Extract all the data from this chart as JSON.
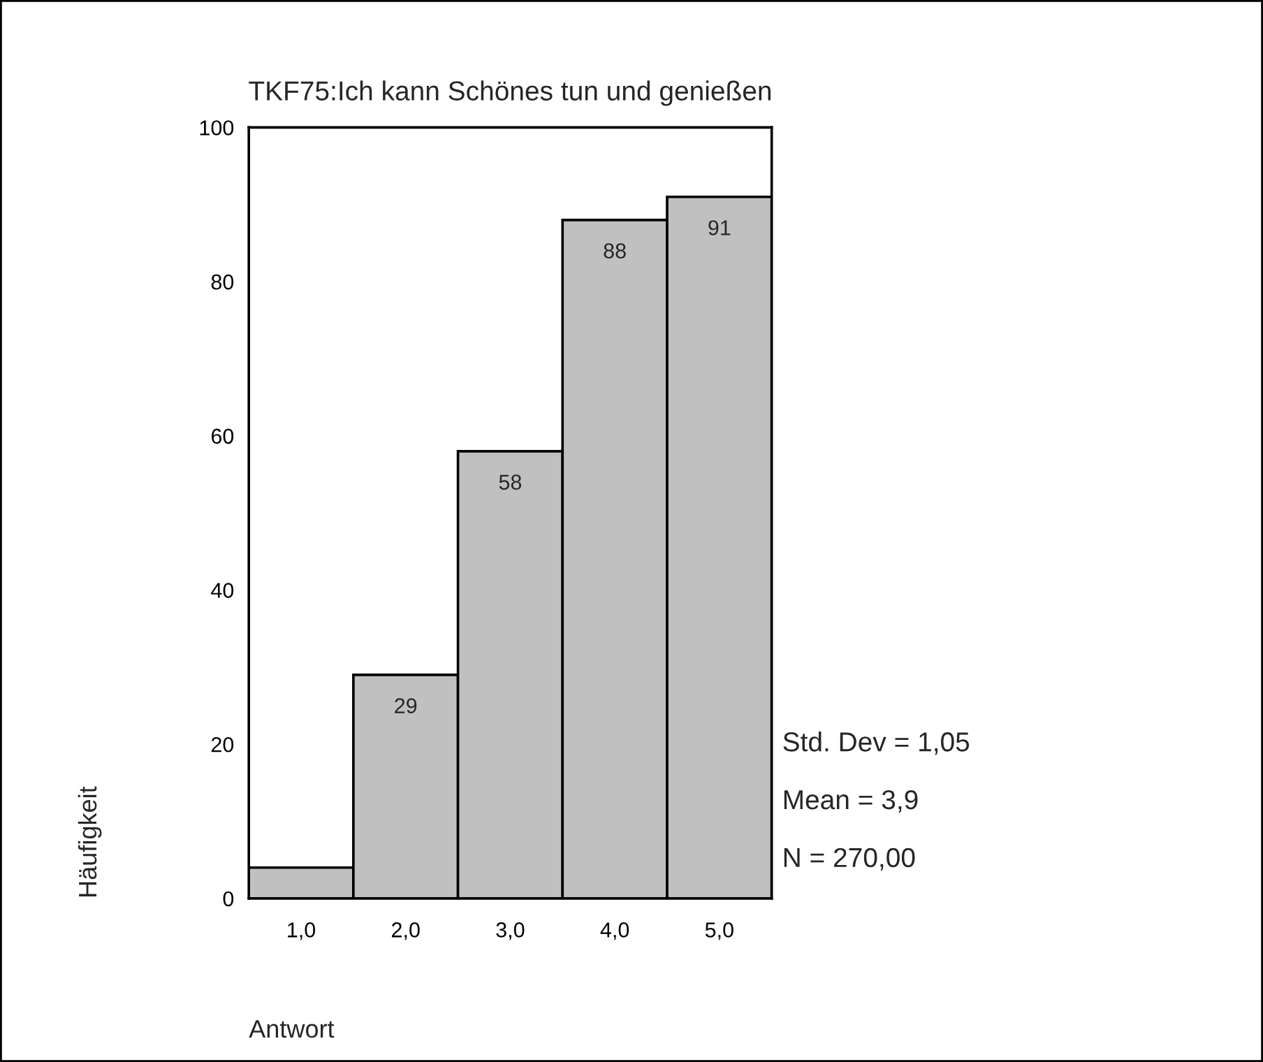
{
  "chart_data": {
    "type": "histogram",
    "title": "TKF75:Ich kann Schönes tun und genießen",
    "xlabel": "Antwort",
    "ylabel": "Häufigkeit",
    "bins": [
      0.5,
      1.5,
      2.5,
      3.5,
      4.5,
      5.5
    ],
    "values": [
      4,
      29,
      58,
      88,
      91
    ],
    "value_labels": [
      null,
      "29",
      "58",
      "88",
      "91"
    ],
    "color": "#c0c0c0",
    "xlim": [
      0.5,
      5.5
    ],
    "xticks": [
      {
        "value": 1,
        "label": "1,0"
      },
      {
        "value": 2,
        "label": "2,0"
      },
      {
        "value": 3,
        "label": "3,0"
      },
      {
        "value": 4,
        "label": "4,0"
      },
      {
        "value": 5,
        "label": "5,0"
      }
    ],
    "ylim": [
      0,
      100
    ],
    "yticks": [
      0,
      20,
      40,
      60,
      80,
      100
    ],
    "grid": false,
    "annotations": [
      "Std. Dev = 1,05",
      "Mean = 3,9",
      "N = 270,00"
    ]
  }
}
